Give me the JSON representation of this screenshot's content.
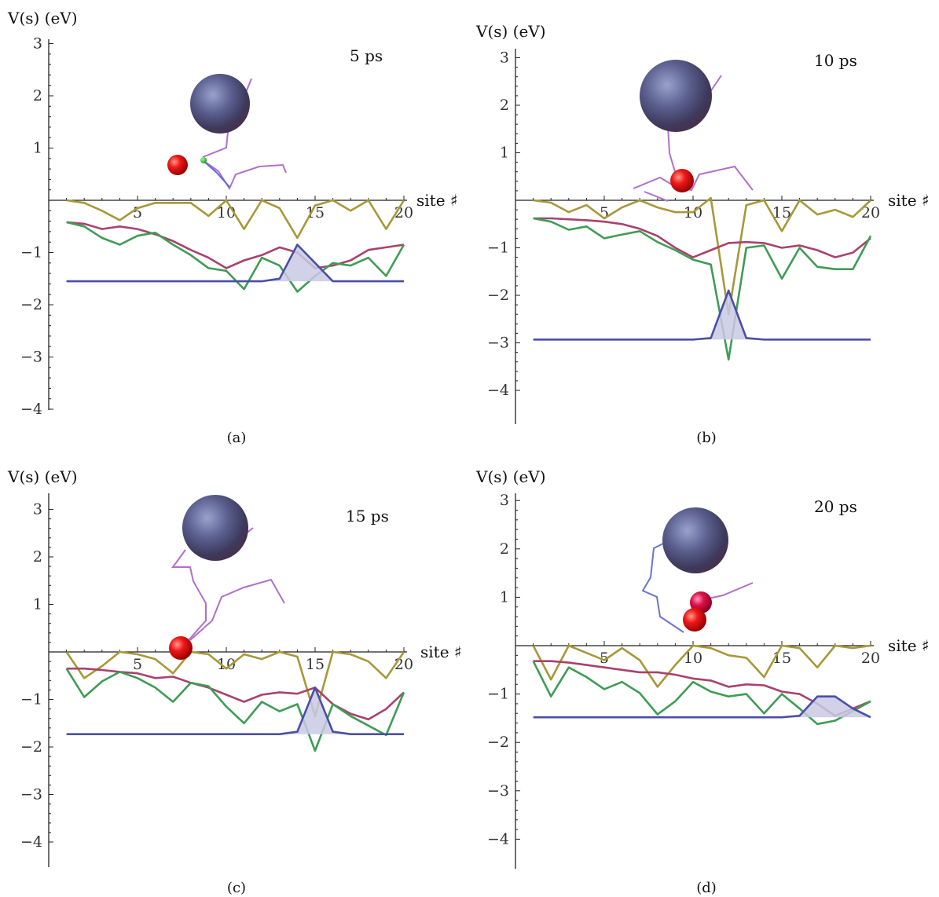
{
  "chart_data": [
    {
      "type": "line",
      "panel": "a",
      "caption": "(a)",
      "time_label": "5 ps",
      "ylabel": "V(s) (eV)",
      "xlabel": "site ♯",
      "xlim": [
        0,
        20
      ],
      "ylim": [
        -4,
        3
      ],
      "x_ticks": [
        5,
        10,
        15,
        20
      ],
      "y_ticks": [
        3,
        2,
        1,
        -1,
        -2,
        -3,
        -4
      ],
      "x": [
        1,
        2,
        3,
        4,
        5,
        6,
        7,
        8,
        9,
        10,
        11,
        12,
        13,
        14,
        15,
        16,
        17,
        18,
        19,
        20
      ],
      "series": [
        {
          "color": "#a89838",
          "values": [
            0,
            -0.05,
            -0.2,
            -0.38,
            -0.15,
            -0.05,
            -0.05,
            -0.05,
            -0.3,
            0,
            -0.55,
            0,
            -0.15,
            -0.72,
            -0.1,
            0.0,
            -0.2,
            0.0,
            -0.55,
            0.0
          ]
        },
        {
          "color": "#a8426e",
          "values": [
            -0.42,
            -0.45,
            -0.55,
            -0.5,
            -0.55,
            -0.65,
            -0.78,
            -0.95,
            -1.1,
            -1.3,
            -1.15,
            -1.05,
            -0.9,
            -1.0,
            -1.3,
            -1.25,
            -1.15,
            -0.95,
            -0.9,
            -0.85
          ]
        },
        {
          "color": "#3f9c55",
          "values": [
            -0.42,
            -0.5,
            -0.72,
            -0.85,
            -0.68,
            -0.62,
            -0.85,
            -1.05,
            -1.3,
            -1.35,
            -1.7,
            -1.1,
            -1.25,
            -1.75,
            -1.45,
            -1.2,
            -1.25,
            -1.1,
            -1.45,
            -0.85
          ]
        },
        {
          "color": "#4a4fa5",
          "fill": "#c9c9e4",
          "values": [
            -1.55,
            -1.55,
            -1.55,
            -1.55,
            -1.55,
            -1.55,
            -1.55,
            -1.55,
            -1.55,
            -1.55,
            -1.55,
            -1.55,
            -1.5,
            -0.85,
            -1.2,
            -1.55,
            -1.55,
            -1.55,
            -1.55,
            -1.55
          ]
        }
      ]
    },
    {
      "type": "line",
      "panel": "b",
      "caption": "(b)",
      "time_label": "10 ps",
      "ylabel": "V(s) (eV)",
      "xlabel": "site ♯",
      "xlim": [
        0,
        20
      ],
      "ylim": [
        -4,
        3
      ],
      "x_ticks": [
        5,
        10,
        15,
        20
      ],
      "y_ticks": [
        3,
        2,
        1,
        -1,
        -2,
        -3,
        -4
      ],
      "x": [
        1,
        2,
        3,
        4,
        5,
        6,
        7,
        8,
        9,
        10,
        11,
        12,
        13,
        14,
        15,
        16,
        17,
        18,
        19,
        20
      ],
      "series": [
        {
          "color": "#a89838",
          "values": [
            0,
            -0.05,
            -0.25,
            -0.1,
            -0.38,
            -0.15,
            0,
            -0.15,
            -0.25,
            -0.25,
            0.05,
            -2.4,
            -0.1,
            0.0,
            -0.65,
            0.0,
            -0.3,
            -0.2,
            -0.35,
            0.0
          ]
        },
        {
          "color": "#a8426e",
          "values": [
            -0.38,
            -0.38,
            -0.4,
            -0.42,
            -0.45,
            -0.5,
            -0.6,
            -0.75,
            -1.0,
            -1.2,
            -1.05,
            -0.9,
            -0.88,
            -0.9,
            -1.0,
            -0.95,
            -1.05,
            -1.2,
            -1.1,
            -0.8
          ]
        },
        {
          "color": "#3f9c55",
          "values": [
            -0.38,
            -0.45,
            -0.62,
            -0.55,
            -0.8,
            -0.72,
            -0.65,
            -0.88,
            -1.05,
            -1.25,
            -1.35,
            -3.35,
            -1.0,
            -0.95,
            -1.65,
            -1.0,
            -1.4,
            -1.45,
            -1.45,
            -0.75
          ]
        },
        {
          "color": "#4a4fa5",
          "fill": "#c9c9e4",
          "values": [
            -2.93,
            -2.93,
            -2.93,
            -2.93,
            -2.93,
            -2.93,
            -2.93,
            -2.93,
            -2.93,
            -2.93,
            -2.9,
            -1.9,
            -2.9,
            -2.93,
            -2.93,
            -2.93,
            -2.93,
            -2.93,
            -2.93,
            -2.93
          ]
        }
      ]
    },
    {
      "type": "line",
      "panel": "c",
      "caption": "(c)",
      "time_label": "15 ps",
      "ylabel": "V(s) (eV)",
      "xlabel": "site ♯",
      "xlim": [
        0,
        20
      ],
      "ylim": [
        -4,
        3
      ],
      "x_ticks": [
        5,
        10,
        15,
        20
      ],
      "y_ticks": [
        3,
        2,
        1,
        -1,
        -2,
        -3,
        -4
      ],
      "x": [
        1,
        2,
        3,
        4,
        5,
        6,
        7,
        8,
        9,
        10,
        11,
        12,
        13,
        14,
        15,
        16,
        17,
        18,
        19,
        20
      ],
      "series": [
        {
          "color": "#a89838",
          "values": [
            0,
            -0.55,
            -0.3,
            0,
            -0.05,
            -0.15,
            -0.45,
            0,
            -0.05,
            -0.35,
            -0.05,
            -0.15,
            0.0,
            -0.1,
            -1.35,
            0.0,
            -0.05,
            -0.2,
            -0.55,
            0.0
          ]
        },
        {
          "color": "#a8426e",
          "values": [
            -0.35,
            -0.35,
            -0.38,
            -0.42,
            -0.45,
            -0.55,
            -0.52,
            -0.65,
            -0.75,
            -0.9,
            -1.05,
            -0.9,
            -0.85,
            -0.88,
            -0.75,
            -1.1,
            -1.3,
            -1.42,
            -1.2,
            -0.85
          ]
        },
        {
          "color": "#3f9c55",
          "values": [
            -0.35,
            -0.95,
            -0.62,
            -0.42,
            -0.55,
            -0.75,
            -1.05,
            -0.65,
            -0.72,
            -1.15,
            -1.5,
            -1.05,
            -1.25,
            -1.1,
            -2.08,
            -1.1,
            -1.35,
            -1.55,
            -1.75,
            -0.85
          ]
        },
        {
          "color": "#4a4fa5",
          "fill": "#c9c9e4",
          "values": [
            -1.73,
            -1.73,
            -1.73,
            -1.73,
            -1.73,
            -1.73,
            -1.73,
            -1.73,
            -1.73,
            -1.73,
            -1.73,
            -1.73,
            -1.73,
            -1.68,
            -0.75,
            -1.68,
            -1.73,
            -1.73,
            -1.73,
            -1.73
          ]
        }
      ]
    },
    {
      "type": "line",
      "panel": "d",
      "caption": "(d)",
      "time_label": "20 ps",
      "ylabel": "V(s) (eV)",
      "xlabel": "site ♯",
      "xlim": [
        0,
        20
      ],
      "ylim": [
        -4,
        3
      ],
      "x_ticks": [
        5,
        10,
        15,
        20
      ],
      "y_ticks": [
        3,
        2,
        1,
        -1,
        -2,
        -3,
        -4
      ],
      "x": [
        1,
        2,
        3,
        4,
        5,
        6,
        7,
        8,
        9,
        10,
        11,
        12,
        13,
        14,
        15,
        16,
        17,
        18,
        19,
        20
      ],
      "series": [
        {
          "color": "#a89838",
          "values": [
            0,
            -0.7,
            0,
            -0.15,
            -0.3,
            -0.05,
            -0.3,
            -0.85,
            -0.4,
            0,
            -0.05,
            -0.2,
            -0.25,
            -0.65,
            0,
            -0.05,
            -0.45,
            0,
            -0.05,
            0.0
          ]
        },
        {
          "color": "#a8426e",
          "values": [
            -0.32,
            -0.32,
            -0.35,
            -0.4,
            -0.45,
            -0.5,
            -0.55,
            -0.55,
            -0.6,
            -0.68,
            -0.72,
            -0.85,
            -0.8,
            -0.82,
            -0.95,
            -1.0,
            -1.2,
            -1.45,
            -1.3,
            -1.15
          ]
        },
        {
          "color": "#3f9c55",
          "values": [
            -0.32,
            -1.05,
            -0.45,
            -0.65,
            -0.9,
            -0.75,
            -0.98,
            -1.42,
            -1.15,
            -0.75,
            -0.95,
            -1.05,
            -1.0,
            -1.4,
            -1.0,
            -1.3,
            -1.62,
            -1.55,
            -1.35,
            -1.15
          ]
        },
        {
          "color": "#4a4fa5",
          "fill": "#c9c9e4",
          "values": [
            -1.48,
            -1.48,
            -1.48,
            -1.48,
            -1.48,
            -1.48,
            -1.48,
            -1.48,
            -1.48,
            -1.48,
            -1.48,
            -1.48,
            -1.48,
            -1.48,
            -1.48,
            -1.45,
            -1.05,
            -1.05,
            -1.3,
            -1.48
          ]
        }
      ]
    }
  ]
}
